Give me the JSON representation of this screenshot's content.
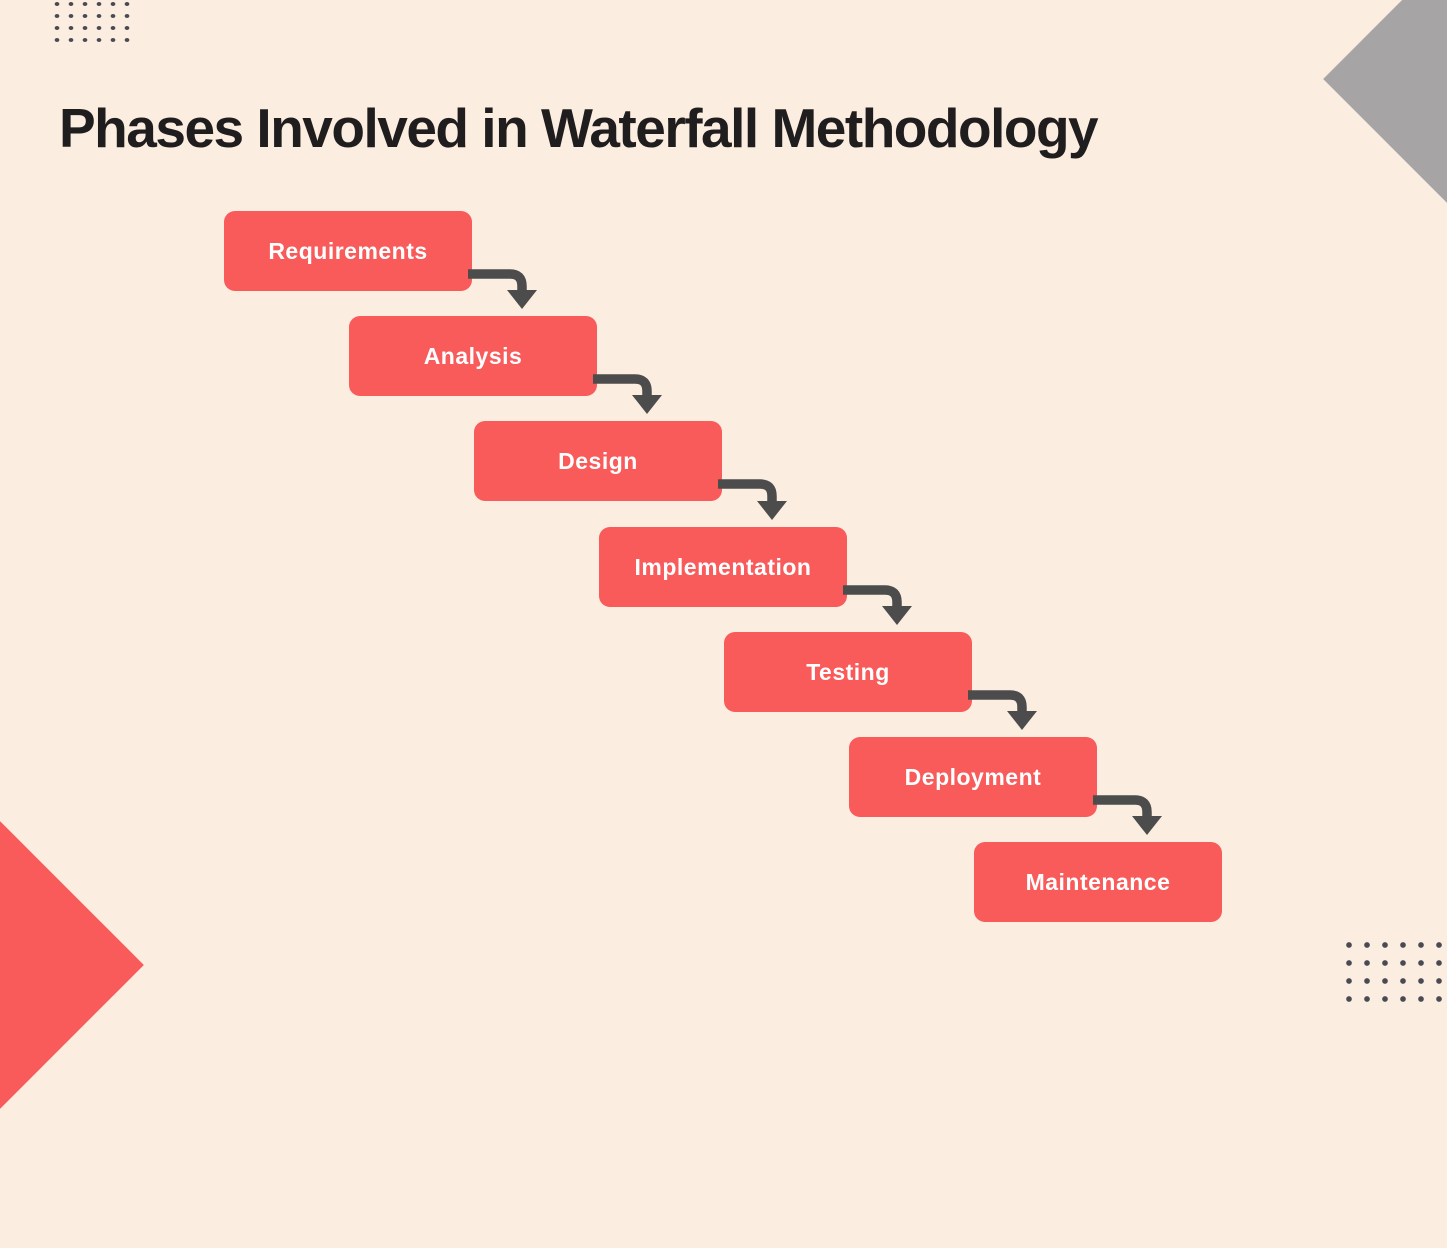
{
  "title": "Phases Involved in Waterfall Methodology",
  "phases": [
    "Requirements",
    "Analysis",
    "Design",
    "Implementation",
    "Testing",
    "Deployment",
    "Maintenance"
  ],
  "colors": {
    "background": "#FCEDE1",
    "box": "#F95A5A",
    "box_text": "#FFFFFF",
    "arrow": "#4C4C4C",
    "title": "#201D1E",
    "gray_shape": "#A6A4A5",
    "dots": "#4A4A52"
  }
}
